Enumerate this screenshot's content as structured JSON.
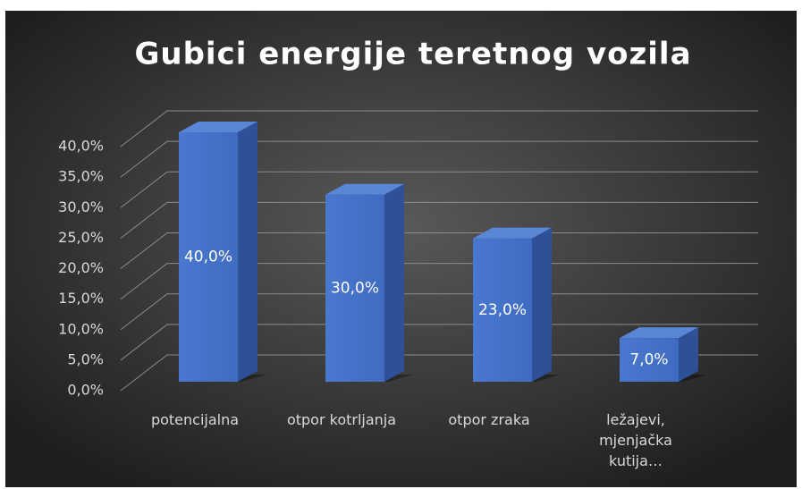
{
  "chart_data": {
    "type": "bar3d",
    "title": "Gubici energije teretnog vozila",
    "categories": [
      "potencijalna",
      "otpor kotrljanja",
      "otpor zraka",
      "ležajevi, mjenjačka kutija…"
    ],
    "values": [
      40,
      30,
      23,
      7
    ],
    "value_labels": [
      "40,0%",
      "30,0%",
      "23,0%",
      "7,0%"
    ],
    "color": "#4472c4",
    "ylim": [
      0,
      40
    ],
    "yticks": [
      {
        "value": 0,
        "label": "0,0%"
      },
      {
        "value": 5,
        "label": "5,0%"
      },
      {
        "value": 10,
        "label": "10,0%"
      },
      {
        "value": 15,
        "label": "15,0%"
      },
      {
        "value": 20,
        "label": "20,0%"
      },
      {
        "value": 25,
        "label": "25,0%"
      },
      {
        "value": 30,
        "label": "30,0%"
      },
      {
        "value": 35,
        "label": "35,0%"
      },
      {
        "value": 40,
        "label": "40,0%"
      }
    ],
    "grid": true
  }
}
